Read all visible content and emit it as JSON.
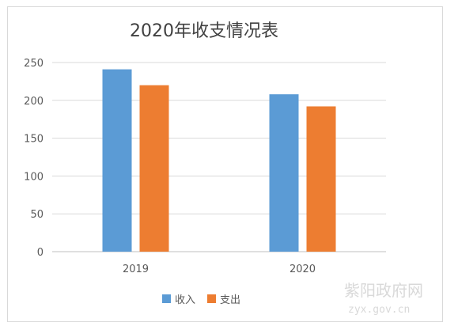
{
  "chart_data": {
    "type": "bar",
    "title": "2020年收支情况表",
    "categories": [
      "2019",
      "2020"
    ],
    "series": [
      {
        "name": "收入",
        "values": [
          241,
          208
        ],
        "color": "#5b9bd5"
      },
      {
        "name": "支出",
        "values": [
          220,
          192
        ],
        "color": "#ed7d31"
      }
    ],
    "ylim": [
      0,
      250
    ],
    "yticks": [
      0,
      50,
      100,
      150,
      200,
      250
    ],
    "grid": true,
    "legend": "bottom"
  },
  "watermark": {
    "line1": "紫阳政府网",
    "line2": "zyx.gov.cn"
  }
}
